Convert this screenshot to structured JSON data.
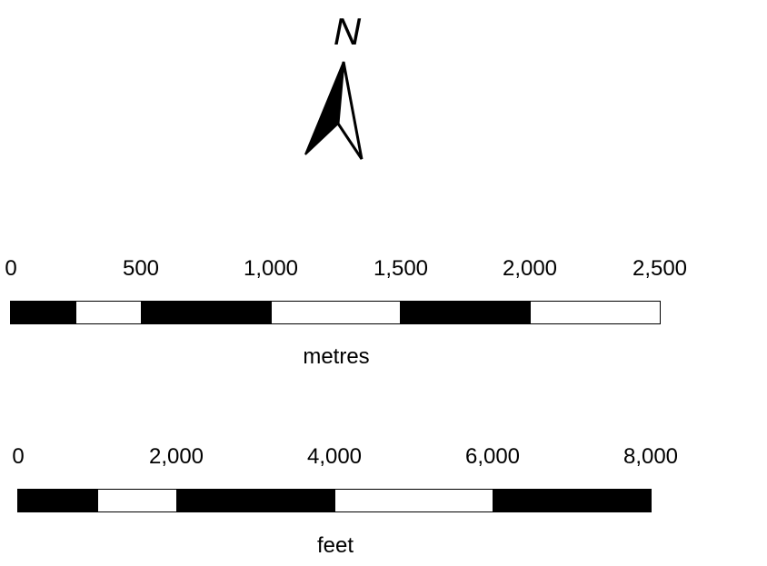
{
  "north_arrow": {
    "label": "N",
    "icon": "north-arrow-icon"
  },
  "scale_metres": {
    "unit": "metres",
    "ticks": [
      "0",
      "500",
      "1,000",
      "1,500",
      "2,000",
      "2,500"
    ],
    "segments": [
      "black",
      "white",
      "black",
      "white",
      "black",
      "white"
    ]
  },
  "scale_feet": {
    "unit": "feet",
    "ticks": [
      "0",
      "2,000",
      "4,000",
      "6,000",
      "8,000"
    ],
    "segments": [
      "black",
      "white",
      "black",
      "white",
      "black"
    ]
  }
}
